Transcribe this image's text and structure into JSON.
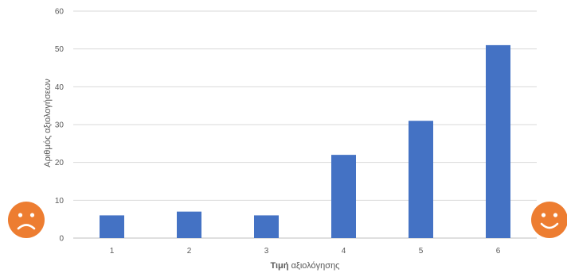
{
  "chart_data": {
    "type": "bar",
    "categories": [
      "1",
      "2",
      "3",
      "4",
      "5",
      "6"
    ],
    "values": [
      6,
      7,
      6,
      22,
      31,
      51
    ],
    "title": "",
    "xlabel_bold": "Τιμή",
    "xlabel_rest": " αξιολόγησης",
    "ylabel": "Αριθμός αξιολογήσεων",
    "ylim": [
      0,
      60
    ],
    "yticks": [
      0,
      10,
      20,
      30,
      40,
      50,
      60
    ],
    "grid": true,
    "legend": "none",
    "colors": {
      "bar": "#4472c4",
      "grid": "#d9d9d9",
      "text": "#595959",
      "face": "#ed7d31"
    }
  },
  "decorations": {
    "left_icon": "sad-face-icon",
    "right_icon": "happy-face-icon"
  }
}
